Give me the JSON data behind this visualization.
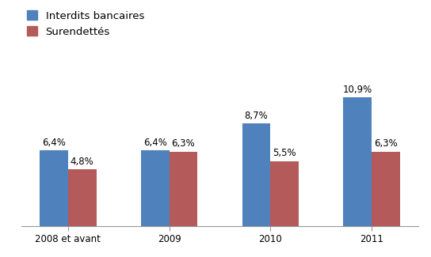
{
  "categories": [
    "2008 et avant",
    "2009",
    "2010",
    "2011"
  ],
  "interdits_bancaires": [
    6.4,
    6.4,
    8.7,
    10.9
  ],
  "surendettas": [
    4.8,
    6.3,
    5.5,
    6.3
  ],
  "bar_color_blue": "#4F81BD",
  "bar_color_red": "#B55A5A",
  "legend_labels": [
    "Interdits bancaires",
    "Surendettés"
  ],
  "bar_width": 0.28,
  "ylim": [
    0,
    13
  ],
  "background_color": "#ffffff",
  "label_fontsize": 8.5,
  "legend_fontsize": 9.5,
  "tick_fontsize": 8.5
}
